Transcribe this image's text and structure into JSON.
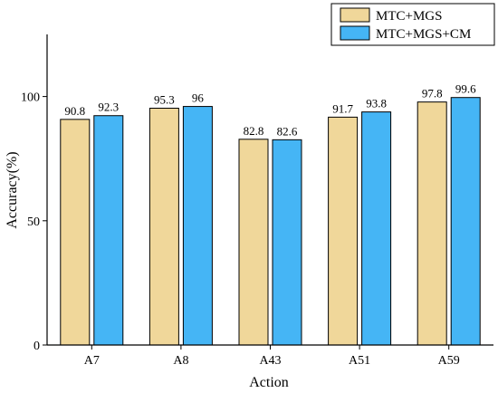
{
  "chart_data": {
    "type": "bar",
    "categories": [
      "A7",
      "A8",
      "A43",
      "A51",
      "A59"
    ],
    "series": [
      {
        "name": "MTC+MGS",
        "values": [
          90.8,
          95.3,
          82.8,
          91.7,
          97.8
        ],
        "color": "#f0d79a"
      },
      {
        "name": "MTC+MGS+CM",
        "values": [
          92.3,
          96,
          82.6,
          93.8,
          99.6
        ],
        "color": "#45b5f5"
      }
    ],
    "data_labels": [
      [
        "90.8",
        "95.3",
        "82.8",
        "91.7",
        "97.8"
      ],
      [
        "92.3",
        "96",
        "82.6",
        "93.8",
        "99.6"
      ]
    ],
    "title": "",
    "xlabel": "Action",
    "ylabel": "Accuracy(%)",
    "ylim": [
      0,
      125
    ],
    "yticks": [
      0,
      50,
      100
    ],
    "grid": false,
    "legend_position": "top-right"
  }
}
